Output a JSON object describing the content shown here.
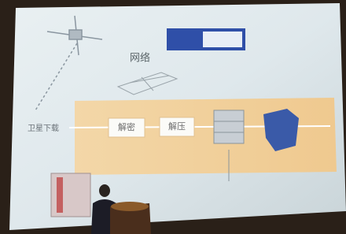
{
  "screen": {
    "labels": {
      "network": "网络",
      "satellite": "卫星下载",
      "decrypt": "解密",
      "decompress": "解压"
    }
  }
}
